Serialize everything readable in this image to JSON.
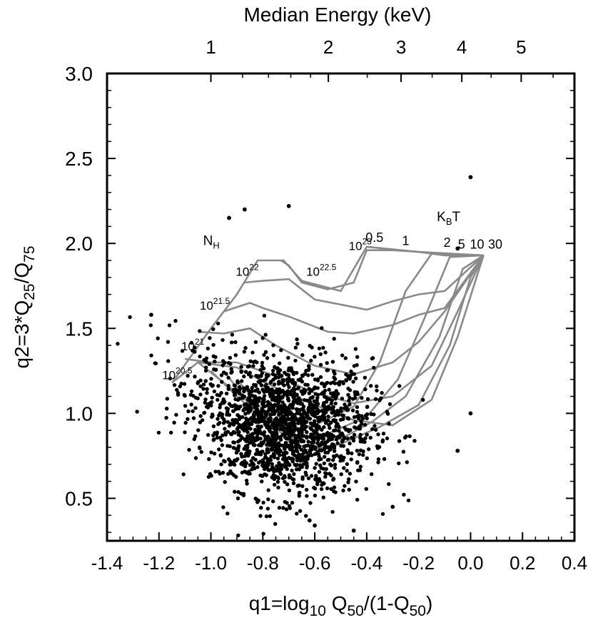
{
  "chart_data": {
    "type": "scatter",
    "title": "",
    "xlabel": "q1=log10 Q50/(1-Q50)",
    "xlabel_parts": {
      "a": "q1=log",
      "a_sub": "10",
      "b": " Q",
      "b_sub": "50",
      "c": "/(1-Q",
      "c_sub": "50",
      "d": ")"
    },
    "ylabel": "q2=3*Q25/Q75",
    "ylabel_parts": {
      "a": "q2=3*Q",
      "a_sub": "25",
      "b": "/Q",
      "b_sub": "75"
    },
    "top_axis_label": "Median Energy (keV)",
    "top_ticks": [
      "1",
      "2",
      "3",
      "4",
      "5"
    ],
    "top_tick_values": [
      1,
      2,
      3,
      4,
      5
    ],
    "xlim": [
      -1.4,
      0.4
    ],
    "ylim": [
      0.25,
      3.0
    ],
    "xticks": [
      "-1.4",
      "-1.2",
      "-1.0",
      "-0.8",
      "-0.6",
      "-0.4",
      "-0.2",
      "0.0",
      "0.2",
      "0.4"
    ],
    "yticks": [
      "0.5",
      "1.0",
      "1.5",
      "2.0",
      "2.5",
      "3.0"
    ],
    "grid": false,
    "grid_labels": {
      "nh_title": "N",
      "nh_title_sub": "H",
      "kt_title": "K",
      "kt_title_sub": "B",
      "kt_title_tail": "T",
      "nh_labels": [
        {
          "base": "10",
          "exp": "20.5",
          "x": -1.13,
          "y": 1.2
        },
        {
          "base": "10",
          "exp": "21",
          "x": -1.07,
          "y": 1.37
        },
        {
          "base": "10",
          "exp": "21.5",
          "x": -0.985,
          "y": 1.61
        },
        {
          "base": "10",
          "exp": "22",
          "x": -0.86,
          "y": 1.81
        },
        {
          "base": "10",
          "exp": "22.5",
          "x": -0.575,
          "y": 1.81
        },
        {
          "base": "10",
          "exp": "23",
          "x": -0.425,
          "y": 1.96
        }
      ],
      "kt_labels": [
        {
          "text": "0.5",
          "x": -0.37,
          "y": 2.01
        },
        {
          "text": "1",
          "x": -0.25,
          "y": 1.99
        },
        {
          "text": "2",
          "x": -0.09,
          "y": 1.98
        },
        {
          "text": "5",
          "x": -0.035,
          "y": 1.97
        },
        {
          "text": "10",
          "x": 0.025,
          "y": 1.97
        },
        {
          "text": "30",
          "x": 0.095,
          "y": 1.97
        }
      ]
    },
    "nh_lines": [
      {
        "name": "",
        "points": [
          [
            -1.15,
            1.18
          ],
          [
            -1.05,
            1.3
          ],
          [
            -0.9,
            1.27
          ],
          [
            -0.75,
            1.15
          ],
          [
            -0.6,
            1.05
          ],
          [
            -0.45,
            0.96
          ],
          [
            -0.3,
            0.93
          ],
          [
            -0.15,
            1.08
          ],
          [
            -0.05,
            1.45
          ],
          [
            0.05,
            1.93
          ]
        ]
      },
      {
        "name": "",
        "points": [
          [
            -1.1,
            1.32
          ],
          [
            -1.0,
            1.3
          ],
          [
            -0.9,
            1.3
          ],
          [
            -0.75,
            1.22
          ],
          [
            -0.6,
            1.12
          ],
          [
            -0.45,
            1.06
          ],
          [
            -0.3,
            1.1
          ],
          [
            -0.15,
            1.28
          ],
          [
            -0.05,
            1.6
          ],
          [
            0.05,
            1.93
          ]
        ]
      },
      {
        "name": "",
        "points": [
          [
            -1.05,
            1.48
          ],
          [
            -0.95,
            1.47
          ],
          [
            -0.85,
            1.5
          ],
          [
            -0.75,
            1.4
          ],
          [
            -0.6,
            1.28
          ],
          [
            -0.45,
            1.23
          ],
          [
            -0.3,
            1.3
          ],
          [
            -0.2,
            1.42
          ],
          [
            -0.1,
            1.6
          ],
          [
            0.05,
            1.93
          ]
        ]
      },
      {
        "name": "",
        "points": [
          [
            -0.95,
            1.6
          ],
          [
            -0.85,
            1.65
          ],
          [
            -0.8,
            1.62
          ],
          [
            -0.7,
            1.57
          ],
          [
            -0.55,
            1.48
          ],
          [
            -0.45,
            1.47
          ],
          [
            -0.3,
            1.52
          ],
          [
            -0.2,
            1.58
          ],
          [
            -0.1,
            1.62
          ],
          [
            0.05,
            1.93
          ]
        ]
      },
      {
        "name": "",
        "points": [
          [
            -0.87,
            1.77
          ],
          [
            -0.8,
            1.78
          ],
          [
            -0.7,
            1.79
          ],
          [
            -0.6,
            1.67
          ],
          [
            -0.5,
            1.64
          ],
          [
            -0.4,
            1.61
          ],
          [
            -0.3,
            1.66
          ],
          [
            -0.2,
            1.7
          ],
          [
            -0.1,
            1.72
          ],
          [
            0.05,
            1.93
          ]
        ]
      },
      {
        "name": "",
        "points": [
          [
            -0.73,
            1.9
          ],
          [
            -0.7,
            1.87
          ],
          [
            -0.65,
            1.77
          ],
          [
            -0.55,
            1.73
          ],
          [
            -0.45,
            1.77
          ],
          [
            -0.4,
            1.96
          ],
          [
            -0.3,
            1.96
          ],
          [
            -0.2,
            1.95
          ],
          [
            -0.1,
            1.93
          ],
          [
            0.05,
            1.93
          ]
        ]
      }
    ],
    "kt_lines": [
      {
        "name": "",
        "points": [
          [
            -1.15,
            1.18
          ],
          [
            -1.0,
            1.5
          ],
          [
            -0.9,
            1.7
          ],
          [
            -0.82,
            1.9
          ],
          [
            -0.72,
            1.9
          ],
          [
            -0.65,
            1.78
          ],
          [
            -0.5,
            1.72
          ],
          [
            -0.4,
            1.98
          ],
          [
            -0.2,
            1.95
          ],
          [
            0.05,
            1.93
          ]
        ]
      },
      {
        "name": "",
        "points": [
          [
            -1.05,
            1.3
          ],
          [
            -0.9,
            1.12
          ],
          [
            -0.8,
            1.0
          ],
          [
            -0.72,
            0.9
          ],
          [
            -0.6,
            0.93
          ],
          [
            -0.45,
            1.04
          ],
          [
            -0.35,
            1.3
          ],
          [
            -0.25,
            1.72
          ],
          [
            -0.15,
            1.94
          ],
          [
            0.05,
            1.93
          ]
        ]
      },
      {
        "name": "",
        "points": [
          [
            -1.0,
            1.25
          ],
          [
            -0.9,
            1.1
          ],
          [
            -0.8,
            0.97
          ],
          [
            -0.7,
            0.85
          ],
          [
            -0.55,
            0.88
          ],
          [
            -0.4,
            0.98
          ],
          [
            -0.28,
            1.2
          ],
          [
            -0.18,
            1.55
          ],
          [
            -0.08,
            1.92
          ],
          [
            0.05,
            1.93
          ]
        ]
      },
      {
        "name": "",
        "points": [
          [
            -0.95,
            1.25
          ],
          [
            -0.85,
            1.05
          ],
          [
            -0.75,
            0.92
          ],
          [
            -0.68,
            0.8
          ],
          [
            -0.5,
            0.85
          ],
          [
            -0.38,
            0.95
          ],
          [
            -0.25,
            1.1
          ],
          [
            -0.12,
            1.45
          ],
          [
            -0.03,
            1.85
          ],
          [
            0.05,
            1.93
          ]
        ]
      },
      {
        "name": "",
        "points": [
          [
            -0.9,
            1.2
          ],
          [
            -0.8,
            1.02
          ],
          [
            -0.7,
            0.88
          ],
          [
            -0.65,
            0.78
          ],
          [
            -0.5,
            0.82
          ],
          [
            -0.35,
            0.92
          ],
          [
            -0.2,
            1.05
          ],
          [
            -0.08,
            1.4
          ],
          [
            0.0,
            1.8
          ],
          [
            0.05,
            1.93
          ]
        ]
      }
    ],
    "outlier_points": [
      [
        0.0,
        2.39
      ],
      [
        -0.7,
        2.22
      ],
      [
        -0.87,
        2.2
      ],
      [
        -0.93,
        2.15
      ],
      [
        -0.05,
        1.97
      ],
      [
        -1.23,
        1.58
      ],
      [
        0.0,
        1.0
      ],
      [
        -0.3,
        0.45
      ],
      [
        -0.62,
        0.37
      ],
      [
        -0.45,
        0.31
      ],
      [
        -0.6,
        0.34
      ],
      [
        -0.05,
        0.78
      ]
    ],
    "cloud": {
      "count": 1800,
      "center": [
        -0.72,
        0.92
      ],
      "spread": [
        0.17,
        0.2
      ]
    },
    "colors": {
      "points": "#000000",
      "grid_lines": "#8a8a8a",
      "axes": "#000000"
    }
  }
}
